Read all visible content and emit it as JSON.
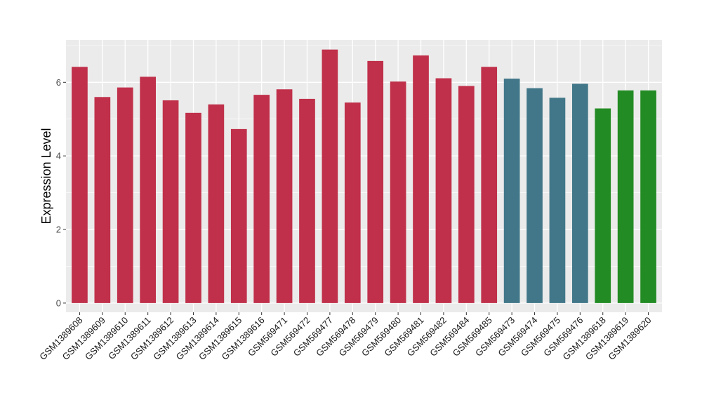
{
  "chart_data": {
    "type": "bar",
    "title": "",
    "xlabel": "",
    "ylabel": "Expression Level",
    "ylim": [
      -0.25,
      7.15
    ],
    "yticks": [
      0,
      2,
      4,
      6
    ],
    "grid": true,
    "legend": "none",
    "categories": [
      "GSM1389608",
      "GSM1389609",
      "GSM1389610",
      "GSM1389611",
      "GSM1389612",
      "GSM1389613",
      "GSM1389614",
      "GSM1389615",
      "GSM1389616",
      "GSM569471",
      "GSM569472",
      "GSM569477",
      "GSM569478",
      "GSM569479",
      "GSM569480",
      "GSM569481",
      "GSM569482",
      "GSM569484",
      "GSM569485",
      "GSM569473",
      "GSM569474",
      "GSM569475",
      "GSM569476",
      "GSM1389618",
      "GSM1389619",
      "GSM1389620"
    ],
    "values": [
      6.42,
      5.6,
      5.86,
      6.15,
      5.51,
      5.17,
      5.4,
      4.73,
      5.66,
      5.81,
      5.55,
      6.89,
      5.45,
      6.58,
      6.02,
      6.73,
      6.11,
      5.9,
      6.42,
      6.1,
      5.84,
      5.58,
      5.96,
      5.29,
      5.78,
      5.78
    ],
    "bar_colors": [
      "#c0304a",
      "#c0304a",
      "#c0304a",
      "#c0304a",
      "#c0304a",
      "#c0304a",
      "#c0304a",
      "#c0304a",
      "#c0304a",
      "#c0304a",
      "#c0304a",
      "#c0304a",
      "#c0304a",
      "#c0304a",
      "#c0304a",
      "#c0304a",
      "#c0304a",
      "#c0304a",
      "#c0304a",
      "#417789",
      "#417789",
      "#417789",
      "#417789",
      "#238b24",
      "#238b24",
      "#238b24"
    ],
    "colors": {
      "panel_background": "#ebebeb",
      "grid": "#ffffff"
    }
  }
}
